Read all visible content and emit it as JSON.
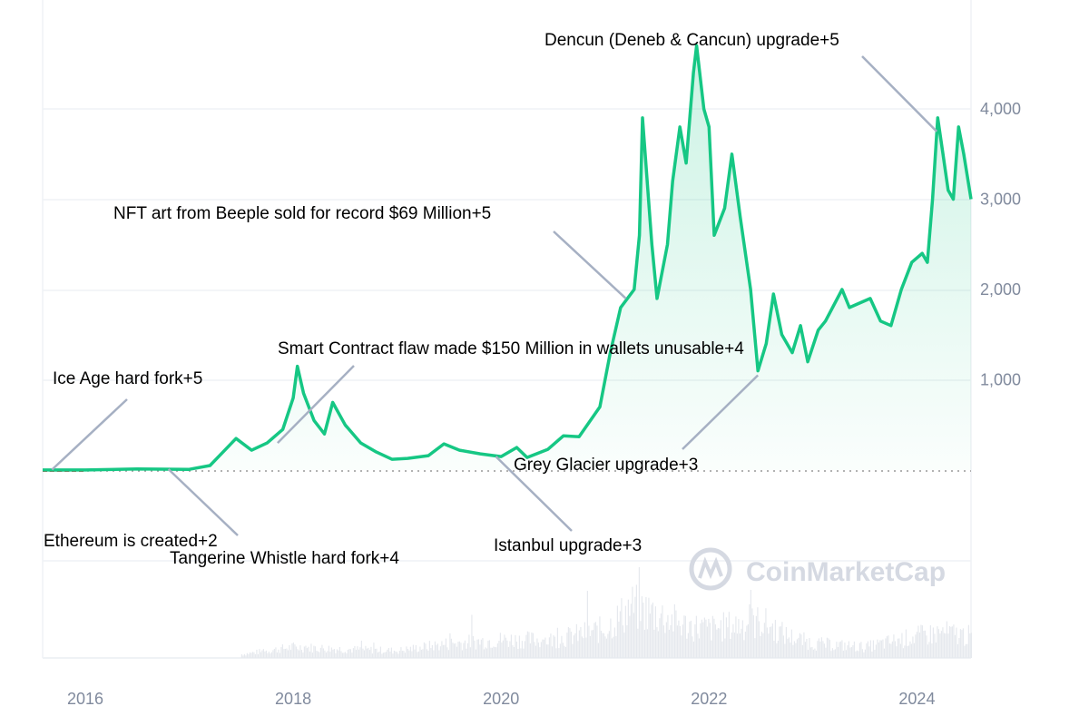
{
  "chart_data": {
    "type": "area",
    "title": "",
    "xlabel": "",
    "ylabel": "",
    "x_tick_labels": [
      "2016",
      "2018",
      "2020",
      "2022",
      "2024"
    ],
    "y_tick_labels": [
      "1,000",
      "2,000",
      "3,000",
      "4,000"
    ],
    "xlim": [
      2015.59,
      2024.52
    ],
    "ylim": [
      0,
      5000
    ],
    "grid": true,
    "y_axis_position": "right",
    "line_color": "#16c784",
    "watermark": "CoinMarketCap",
    "series": [
      {
        "x": [
          2015.59,
          2016.0,
          2016.5,
          2017.0,
          2017.2,
          2017.45,
          2017.6,
          2017.75,
          2017.9,
          2018.0,
          2018.04,
          2018.1,
          2018.2,
          2018.3,
          2018.38,
          2018.5,
          2018.65,
          2018.8,
          2018.95,
          2019.1,
          2019.3,
          2019.45,
          2019.6,
          2019.8,
          2020.0,
          2020.15,
          2020.25,
          2020.45,
          2020.6,
          2020.75,
          2020.95,
          2021.05,
          2021.15,
          2021.28,
          2021.33,
          2021.36,
          2021.45,
          2021.5,
          2021.6,
          2021.65,
          2021.72,
          2021.78,
          2021.85,
          2021.88,
          2021.95,
          2022.0,
          2022.05,
          2022.15,
          2022.22,
          2022.3,
          2022.4,
          2022.47,
          2022.55,
          2022.62,
          2022.7,
          2022.8,
          2022.88,
          2022.95,
          2023.05,
          2023.12,
          2023.28,
          2023.35,
          2023.45,
          2023.55,
          2023.65,
          2023.75,
          2023.85,
          2023.95,
          2024.05,
          2024.1,
          2024.15,
          2024.2,
          2024.25,
          2024.3,
          2024.35,
          2024.4,
          2024.45,
          2024.52
        ],
        "y": [
          1,
          1,
          12,
          8,
          50,
          350,
          220,
          300,
          450,
          800,
          1150,
          850,
          550,
          400,
          750,
          500,
          300,
          200,
          120,
          130,
          160,
          290,
          220,
          180,
          150,
          250,
          140,
          230,
          380,
          370,
          700,
          1300,
          1800,
          2000,
          2600,
          3900,
          2500,
          1900,
          2500,
          3200,
          3800,
          3400,
          4400,
          4700,
          4000,
          3800,
          2600,
          2900,
          3500,
          2800,
          2000,
          1100,
          1400,
          1950,
          1500,
          1300,
          1600,
          1200,
          1550,
          1650,
          2000,
          1800,
          1850,
          1900,
          1650,
          1600,
          2000,
          2300,
          2400,
          2300,
          3000,
          3900,
          3500,
          3100,
          3000,
          3800,
          3500,
          3000
        ]
      }
    ],
    "volume_relative": {
      "x": [
        2017.5,
        2018.0,
        2018.5,
        2019.0,
        2019.5,
        2020.0,
        2020.5,
        2021.0,
        2021.25,
        2021.5,
        2021.75,
        2022.0,
        2022.25,
        2022.5,
        2022.75,
        2023.0,
        2023.5,
        2024.0,
        2024.25,
        2024.52
      ],
      "y": [
        0.05,
        0.15,
        0.12,
        0.1,
        0.2,
        0.25,
        0.25,
        0.4,
        0.7,
        0.6,
        0.45,
        0.4,
        0.45,
        0.5,
        0.3,
        0.2,
        0.15,
        0.3,
        0.35,
        0.3
      ]
    },
    "annotations": [
      {
        "label": "Ethereum is created+2",
        "x": 2015.59,
        "y": 0
      },
      {
        "label": "Tangerine Whistle hard fork+4",
        "x": 2016.8,
        "y": 10
      },
      {
        "label": "Ice Age hard fork+5",
        "x": 2015.68,
        "y": 5
      },
      {
        "label": "Smart Contract flaw made $150 Million in wallets unusable+4",
        "x": 2017.85,
        "y": 300
      },
      {
        "label": "NFT art from Beeple sold for record $69 Million+5",
        "x": 2021.2,
        "y": 1900
      },
      {
        "label": "Dencun (Deneb & Cancun) upgrade+5",
        "x": 2024.19,
        "y": 3750
      },
      {
        "label": "Grey Glacier upgrade+3",
        "x": 2022.47,
        "y": 1050
      },
      {
        "label": "Istanbul upgrade+3",
        "x": 2019.95,
        "y": 150
      }
    ]
  }
}
